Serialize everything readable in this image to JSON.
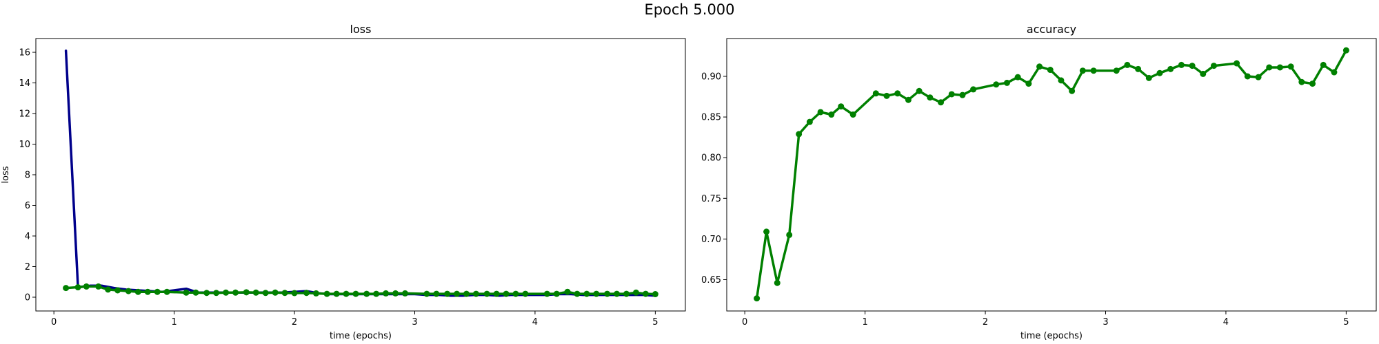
{
  "figure": {
    "title": "Epoch 5.000"
  },
  "chart_data": [
    {
      "type": "line",
      "title": "loss",
      "xlabel": "time (epochs)",
      "ylabel": "loss",
      "xlim": [
        -0.15,
        5.25
      ],
      "ylim": [
        -0.9,
        16.9
      ],
      "xticks": [
        0,
        1,
        2,
        3,
        4,
        5
      ],
      "yticks": [
        0,
        2,
        4,
        6,
        8,
        10,
        12,
        14,
        16
      ],
      "grid": false,
      "series": [
        {
          "color": "#00008b",
          "markers": false,
          "x": [
            0.1,
            0.2,
            0.3,
            0.4,
            0.5,
            0.6,
            0.7,
            0.8,
            0.9,
            1.0,
            1.1,
            1.2,
            1.3,
            1.4,
            1.5,
            1.6,
            1.7,
            1.8,
            1.9,
            2.0,
            2.1,
            2.2,
            2.3,
            2.4,
            2.5,
            2.6,
            2.7,
            2.8,
            2.9,
            3.0,
            3.1,
            3.2,
            3.3,
            3.4,
            3.5,
            3.6,
            3.7,
            3.8,
            3.9,
            4.0,
            4.1,
            4.2,
            4.3,
            4.4,
            4.5,
            4.6,
            4.7,
            4.8,
            4.9,
            5.0
          ],
          "values": [
            16.1,
            0.65,
            0.75,
            0.75,
            0.6,
            0.5,
            0.45,
            0.4,
            0.35,
            0.45,
            0.55,
            0.3,
            0.3,
            0.3,
            0.3,
            0.3,
            0.3,
            0.3,
            0.3,
            0.35,
            0.4,
            0.25,
            0.2,
            0.2,
            0.2,
            0.2,
            0.2,
            0.2,
            0.2,
            0.2,
            0.15,
            0.15,
            0.1,
            0.1,
            0.15,
            0.15,
            0.1,
            0.15,
            0.15,
            0.15,
            0.15,
            0.2,
            0.2,
            0.15,
            0.15,
            0.15,
            0.15,
            0.15,
            0.15,
            0.1
          ]
        },
        {
          "color": "#008000",
          "markers": true,
          "x": [
            0.1,
            0.2,
            0.27,
            0.37,
            0.45,
            0.53,
            0.62,
            0.7,
            0.78,
            0.86,
            0.94,
            1.1,
            1.18,
            1.27,
            1.35,
            1.43,
            1.51,
            1.6,
            1.68,
            1.76,
            1.84,
            1.92,
            2.0,
            2.1,
            2.18,
            2.27,
            2.35,
            2.43,
            2.51,
            2.6,
            2.68,
            2.76,
            2.84,
            2.92,
            3.1,
            3.18,
            3.27,
            3.35,
            3.43,
            3.51,
            3.6,
            3.68,
            3.76,
            3.84,
            3.92,
            4.1,
            4.18,
            4.27,
            4.35,
            4.43,
            4.51,
            4.6,
            4.68,
            4.76,
            4.84,
            4.92,
            5.0
          ],
          "values": [
            0.6,
            0.65,
            0.7,
            0.7,
            0.5,
            0.45,
            0.4,
            0.35,
            0.35,
            0.35,
            0.35,
            0.3,
            0.3,
            0.28,
            0.28,
            0.3,
            0.3,
            0.32,
            0.3,
            0.28,
            0.3,
            0.28,
            0.27,
            0.28,
            0.25,
            0.22,
            0.22,
            0.22,
            0.22,
            0.22,
            0.22,
            0.25,
            0.25,
            0.25,
            0.22,
            0.22,
            0.22,
            0.22,
            0.22,
            0.22,
            0.22,
            0.22,
            0.22,
            0.22,
            0.22,
            0.22,
            0.22,
            0.35,
            0.22,
            0.22,
            0.22,
            0.22,
            0.22,
            0.22,
            0.3,
            0.22,
            0.2
          ]
        }
      ]
    },
    {
      "type": "line",
      "title": "accuracy",
      "xlabel": "time (epochs)",
      "ylabel": "",
      "xlim": [
        -0.15,
        5.25
      ],
      "ylim": [
        0.6115,
        0.9465
      ],
      "xticks": [
        0,
        1,
        2,
        3,
        4,
        5
      ],
      "yticks": [
        0.65,
        0.7,
        0.75,
        0.8,
        0.85,
        0.9
      ],
      "ytick_labels": [
        "0.65",
        "0.70",
        "0.75",
        "0.80",
        "0.85",
        "0.90"
      ],
      "grid": false,
      "series": [
        {
          "color": "#008000",
          "markers": true,
          "x": [
            0.1,
            0.18,
            0.27,
            0.37,
            0.45,
            0.54,
            0.63,
            0.72,
            0.8,
            0.9,
            1.09,
            1.18,
            1.27,
            1.36,
            1.45,
            1.54,
            1.63,
            1.72,
            1.81,
            1.9,
            2.09,
            2.18,
            2.27,
            2.36,
            2.45,
            2.54,
            2.63,
            2.72,
            2.81,
            2.9,
            3.09,
            3.18,
            3.27,
            3.36,
            3.45,
            3.54,
            3.63,
            3.72,
            3.81,
            3.9,
            4.09,
            4.18,
            4.27,
            4.36,
            4.45,
            4.54,
            4.63,
            4.72,
            4.81,
            4.9,
            5.0
          ],
          "values": [
            0.627,
            0.709,
            0.646,
            0.705,
            0.829,
            0.844,
            0.856,
            0.853,
            0.863,
            0.853,
            0.879,
            0.876,
            0.879,
            0.871,
            0.882,
            0.874,
            0.868,
            0.878,
            0.877,
            0.884,
            0.89,
            0.892,
            0.899,
            0.891,
            0.912,
            0.908,
            0.895,
            0.882,
            0.907,
            0.907,
            0.907,
            0.914,
            0.909,
            0.898,
            0.904,
            0.909,
            0.914,
            0.913,
            0.903,
            0.913,
            0.916,
            0.9,
            0.899,
            0.911,
            0.911,
            0.912,
            0.893,
            0.891,
            0.914,
            0.905,
            0.932
          ]
        }
      ]
    }
  ]
}
